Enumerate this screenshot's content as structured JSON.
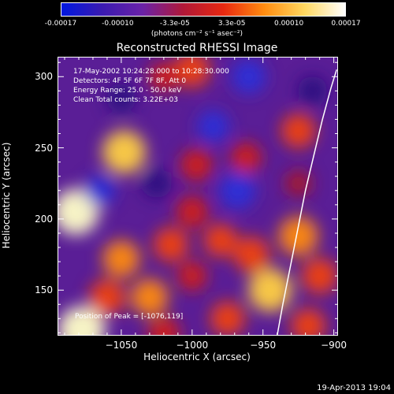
{
  "colorbar": {
    "ticks": [
      "-0.00017",
      "-0.00010",
      "-3.3e-05",
      "3.3e-05",
      "0.00010",
      "0.00017"
    ],
    "units": "(photons cm⁻² s⁻¹ asec⁻²)",
    "range": [
      -0.00017,
      0.00017
    ],
    "colors": [
      "#0018e0",
      "#3a1ab0",
      "#6a22a8",
      "#b01838",
      "#e82810",
      "#ff8c10",
      "#ffd860",
      "#ffffff"
    ]
  },
  "info": {
    "time": "17-May-2002 10:24:28.000 to 10:28:30.000",
    "detectors": "Detectors: 4F 5F 6F 7F 8F, Att 0",
    "energy": "Energy Range: 25.0 - 50.0 keV",
    "clean": "Clean    Total counts: 3.22E+03",
    "peak": "Position of Peak = [-1076,119]"
  },
  "footer": {
    "date": "19-Apr-2013 19:04"
  },
  "chart_data": {
    "type": "heatmap",
    "title": "Reconstructed RHESSI Image",
    "xlabel": "Heliocentric X (arcsec)",
    "ylabel": "Heliocentric Y (arcsec)",
    "xlim": [
      -1095,
      -897
    ],
    "ylim": [
      118,
      314
    ],
    "xticks": [
      -1050,
      -1000,
      -950,
      -900
    ],
    "yticks": [
      150,
      200,
      250,
      300
    ],
    "xtick_labels": [
      "−1050",
      "−1000",
      "−950",
      "−900"
    ],
    "ytick_labels": [
      "150",
      "200",
      "250",
      "300"
    ],
    "peak": {
      "x": -1076,
      "y": 119
    },
    "limb_curve_x": [
      -940,
      -936,
      -930,
      -925,
      -920,
      -914,
      -908,
      -902,
      -898
    ],
    "limb_curve_y": [
      118,
      140,
      170,
      195,
      220,
      245,
      270,
      292,
      305
    ],
    "sources": [
      {
        "x": -1078,
        "y": 122,
        "v": 1.0
      },
      {
        "x": -1082,
        "y": 205,
        "v": 0.95
      },
      {
        "x": -1048,
        "y": 247,
        "v": 0.85
      },
      {
        "x": -1000,
        "y": 305,
        "v": 0.55
      },
      {
        "x": -997,
        "y": 238,
        "v": 0.4
      },
      {
        "x": -962,
        "y": 243,
        "v": 0.35
      },
      {
        "x": -925,
        "y": 262,
        "v": 0.5
      },
      {
        "x": -1050,
        "y": 172,
        "v": 0.6
      },
      {
        "x": -1015,
        "y": 182,
        "v": 0.5
      },
      {
        "x": -1000,
        "y": 205,
        "v": 0.4
      },
      {
        "x": -980,
        "y": 185,
        "v": 0.45
      },
      {
        "x": -958,
        "y": 175,
        "v": 0.55
      },
      {
        "x": -925,
        "y": 188,
        "v": 0.7
      },
      {
        "x": -910,
        "y": 160,
        "v": 0.55
      },
      {
        "x": -945,
        "y": 150,
        "v": 0.85
      },
      {
        "x": -975,
        "y": 130,
        "v": 0.5
      },
      {
        "x": -1030,
        "y": 145,
        "v": 0.6
      },
      {
        "x": -1060,
        "y": 145,
        "v": 0.55
      },
      {
        "x": -960,
        "y": 300,
        "v": -0.5
      },
      {
        "x": -1020,
        "y": 300,
        "v": 0.3
      },
      {
        "x": -1050,
        "y": 285,
        "v": -0.3
      },
      {
        "x": -968,
        "y": 220,
        "v": -0.6
      },
      {
        "x": -985,
        "y": 265,
        "v": -0.4
      },
      {
        "x": -1025,
        "y": 225,
        "v": -0.3
      },
      {
        "x": -1065,
        "y": 220,
        "v": -0.35
      },
      {
        "x": -925,
        "y": 225,
        "v": 0.2
      },
      {
        "x": -915,
        "y": 290,
        "v": -0.3
      },
      {
        "x": -1000,
        "y": 160,
        "v": 0.3
      },
      {
        "x": -918,
        "y": 125,
        "v": 0.5
      },
      {
        "x": -1020,
        "y": 120,
        "v": 0.4
      }
    ]
  }
}
